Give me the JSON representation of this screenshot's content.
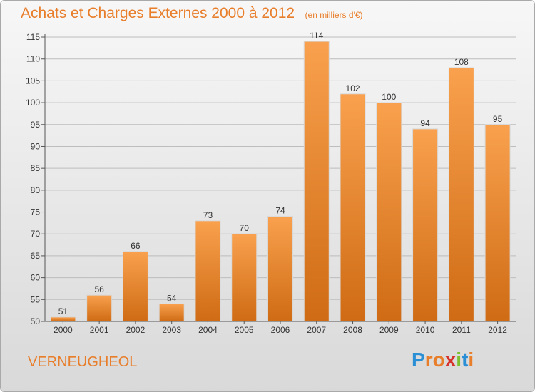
{
  "title": "Achats et Charges Externes 2000 à 2012",
  "unit": "(en milliers d'€)",
  "commune": "VERNEUGHEOL",
  "logo": {
    "letters": [
      "P",
      "r",
      "o",
      "x",
      "i",
      "t",
      "i"
    ],
    "colors": [
      "#2b8fd6",
      "#e87d2a",
      "#e87d2a",
      "#d6322b",
      "#7cbf2f",
      "#2b8fd6",
      "#e87d2a"
    ]
  },
  "colors": {
    "accent": "#e87d2a",
    "bar_top": "#f9a14e",
    "bar_bottom": "#cf6b14",
    "grid": "#bdbdbd"
  },
  "chart_data": {
    "type": "bar",
    "categories": [
      "2000",
      "2001",
      "2002",
      "2003",
      "2004",
      "2005",
      "2006",
      "2007",
      "2008",
      "2009",
      "2010",
      "2011",
      "2012"
    ],
    "values": [
      51,
      56,
      66,
      54,
      73,
      70,
      74,
      114,
      102,
      100,
      94,
      108,
      95
    ],
    "data_labels": [
      "51",
      "56",
      "66",
      "54",
      "73",
      "70",
      "74",
      "114",
      "102",
      "100",
      "94",
      "108",
      "95"
    ],
    "title": "Achats et Charges Externes 2000 à 2012",
    "ylim": [
      50,
      115
    ],
    "yticks": [
      50,
      55,
      60,
      65,
      70,
      75,
      80,
      85,
      90,
      95,
      100,
      105,
      110,
      115
    ],
    "grid": true
  }
}
